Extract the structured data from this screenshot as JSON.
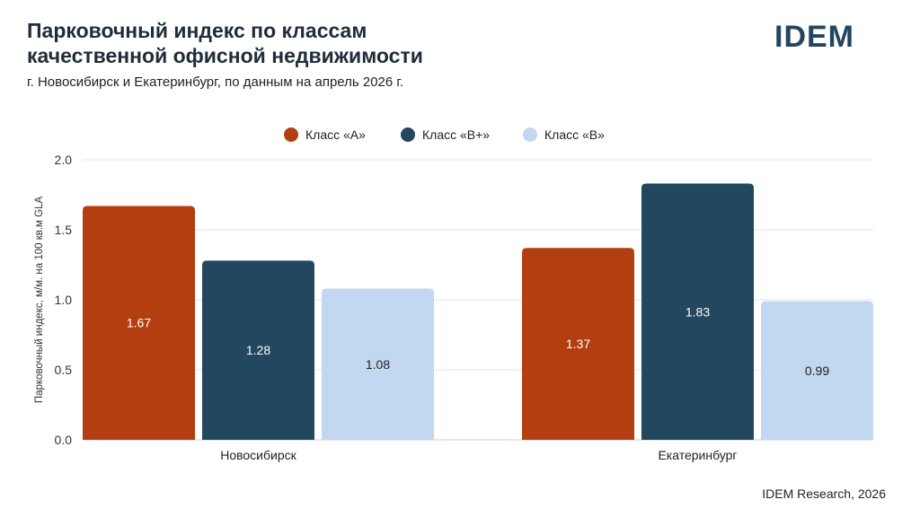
{
  "header": {
    "title_line1": "Парковочный индекс по классам",
    "title_line2": "качественной офисной недвижимости",
    "subtitle": "г. Новосибирск и Екатеринбург, по данным на апрель 2026 г.",
    "logo": "IDEM"
  },
  "footer": {
    "source": "IDEM Research, 2026"
  },
  "chart_data": {
    "type": "bar",
    "categories": [
      "Новосибирск",
      "Екатеринбург"
    ],
    "series": [
      {
        "name": "Класс «А»",
        "color": "#b33e0f",
        "label_color": "#ffffff",
        "values": [
          1.67,
          1.37
        ]
      },
      {
        "name": "Класс «В+»",
        "color": "#23475f",
        "label_color": "#ffffff",
        "values": [
          1.28,
          1.83
        ]
      },
      {
        "name": "Класс «В»",
        "color": "#c2d8f0",
        "label_color": "#222222",
        "values": [
          1.08,
          0.99
        ]
      }
    ],
    "value_labels": [
      [
        "1.67",
        "1.37"
      ],
      [
        "1.28",
        "1.83"
      ],
      [
        "1.08",
        "0.99"
      ]
    ],
    "yticks": [
      "0.0",
      "0.5",
      "1.0",
      "1.5",
      "2.0"
    ],
    "ylim": [
      0,
      2.0
    ],
    "ylabel": "Парковочный индекс, м/м. на 100 кв.м GLA",
    "legend_position": "top-center",
    "grid": true
  }
}
